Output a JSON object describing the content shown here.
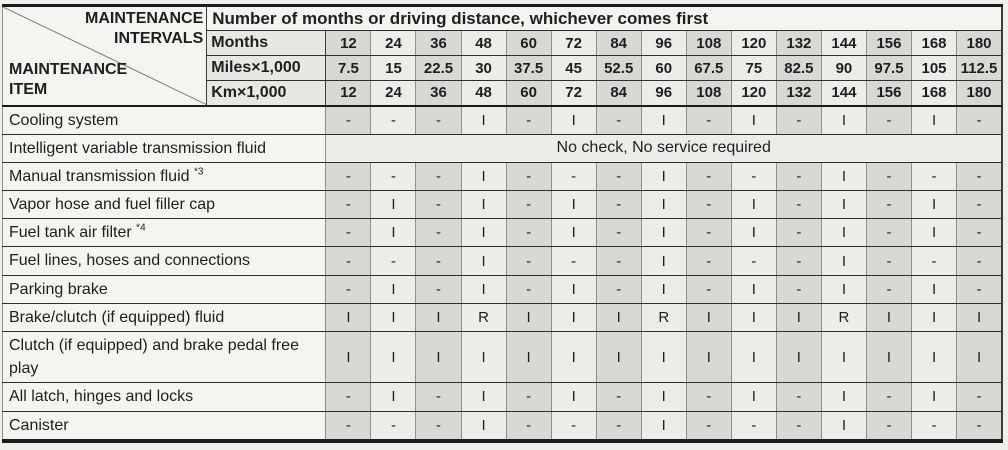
{
  "header": {
    "corner_top_label": "MAINTENANCE\nINTERVALS",
    "corner_bottom_label": "MAINTENANCE\nITEM",
    "span_title": "Number of months or driving distance, whichever comes first",
    "interval_rows": [
      {
        "label": "Months",
        "values": [
          "12",
          "24",
          "36",
          "48",
          "60",
          "72",
          "84",
          "96",
          "108",
          "120",
          "132",
          "144",
          "156",
          "168",
          "180"
        ]
      },
      {
        "label": "Miles×1,000",
        "values": [
          "7.5",
          "15",
          "22.5",
          "30",
          "37.5",
          "45",
          "52.5",
          "60",
          "67.5",
          "75",
          "82.5",
          "90",
          "97.5",
          "105",
          "112.5"
        ]
      },
      {
        "label": "Km×1,000",
        "values": [
          "12",
          "24",
          "36",
          "48",
          "60",
          "72",
          "84",
          "96",
          "108",
          "120",
          "132",
          "144",
          "156",
          "168",
          "180"
        ]
      }
    ]
  },
  "body": {
    "legend_symbols": {
      "inspect": "I",
      "replace": "R",
      "none": "-"
    },
    "rows": [
      {
        "item": "Cooling system",
        "cells": [
          "-",
          "-",
          "-",
          "I",
          "-",
          "I",
          "-",
          "I",
          "-",
          "I",
          "-",
          "I",
          "-",
          "I",
          "-"
        ]
      },
      {
        "item": "Intelligent variable transmission fluid",
        "span_text": "No check, No service required"
      },
      {
        "item": "Manual transmission fluid",
        "note": "*3",
        "cells": [
          "-",
          "-",
          "-",
          "I",
          "-",
          "-",
          "-",
          "I",
          "-",
          "-",
          "-",
          "I",
          "-",
          "-",
          "-"
        ]
      },
      {
        "item": "Vapor hose and fuel filler cap",
        "cells": [
          "-",
          "I",
          "-",
          "I",
          "-",
          "I",
          "-",
          "I",
          "-",
          "I",
          "-",
          "I",
          "-",
          "I",
          "-"
        ]
      },
      {
        "item": "Fuel tank air filter",
        "note": "*4",
        "cells": [
          "-",
          "I",
          "-",
          "I",
          "-",
          "I",
          "-",
          "I",
          "-",
          "I",
          "-",
          "I",
          "-",
          "I",
          "-"
        ]
      },
      {
        "item": "Fuel lines, hoses and connections",
        "cells": [
          "-",
          "-",
          "-",
          "I",
          "-",
          "-",
          "-",
          "I",
          "-",
          "-",
          "-",
          "I",
          "-",
          "-",
          "-"
        ]
      },
      {
        "item": "Parking brake",
        "cells": [
          "-",
          "I",
          "-",
          "I",
          "-",
          "I",
          "-",
          "I",
          "-",
          "I",
          "-",
          "I",
          "-",
          "I",
          "-"
        ]
      },
      {
        "item": "Brake/clutch (if equipped) fluid",
        "cells": [
          "I",
          "I",
          "I",
          "R",
          "I",
          "I",
          "I",
          "R",
          "I",
          "I",
          "I",
          "R",
          "I",
          "I",
          "I"
        ]
      },
      {
        "item": "Clutch (if equipped) and brake pedal free play",
        "cells": [
          "I",
          "I",
          "I",
          "I",
          "I",
          "I",
          "I",
          "I",
          "I",
          "I",
          "I",
          "I",
          "I",
          "I",
          "I"
        ]
      },
      {
        "item": "All latch, hinges and locks",
        "cells": [
          "-",
          "I",
          "-",
          "I",
          "-",
          "I",
          "-",
          "I",
          "-",
          "I",
          "-",
          "I",
          "-",
          "I",
          "-"
        ]
      },
      {
        "item": "Canister",
        "cells": [
          "-",
          "-",
          "-",
          "I",
          "-",
          "-",
          "-",
          "I",
          "-",
          "-",
          "-",
          "I",
          "-",
          "-",
          "-"
        ]
      }
    ]
  },
  "colors": {
    "page_bg": "#f0efeb",
    "row_bg": "#f5f4f0",
    "label_bg": "#e8e7e3",
    "cell_dark": "#d9d8d5",
    "cell_light": "#edece9",
    "line_dark": "#1c1c1c",
    "line_mid": "#3c3c3c",
    "line_row": "#2e2e2e",
    "line_gray": "#909090",
    "text": "#1f1f1f",
    "diagonal": "#7a7a7a"
  }
}
